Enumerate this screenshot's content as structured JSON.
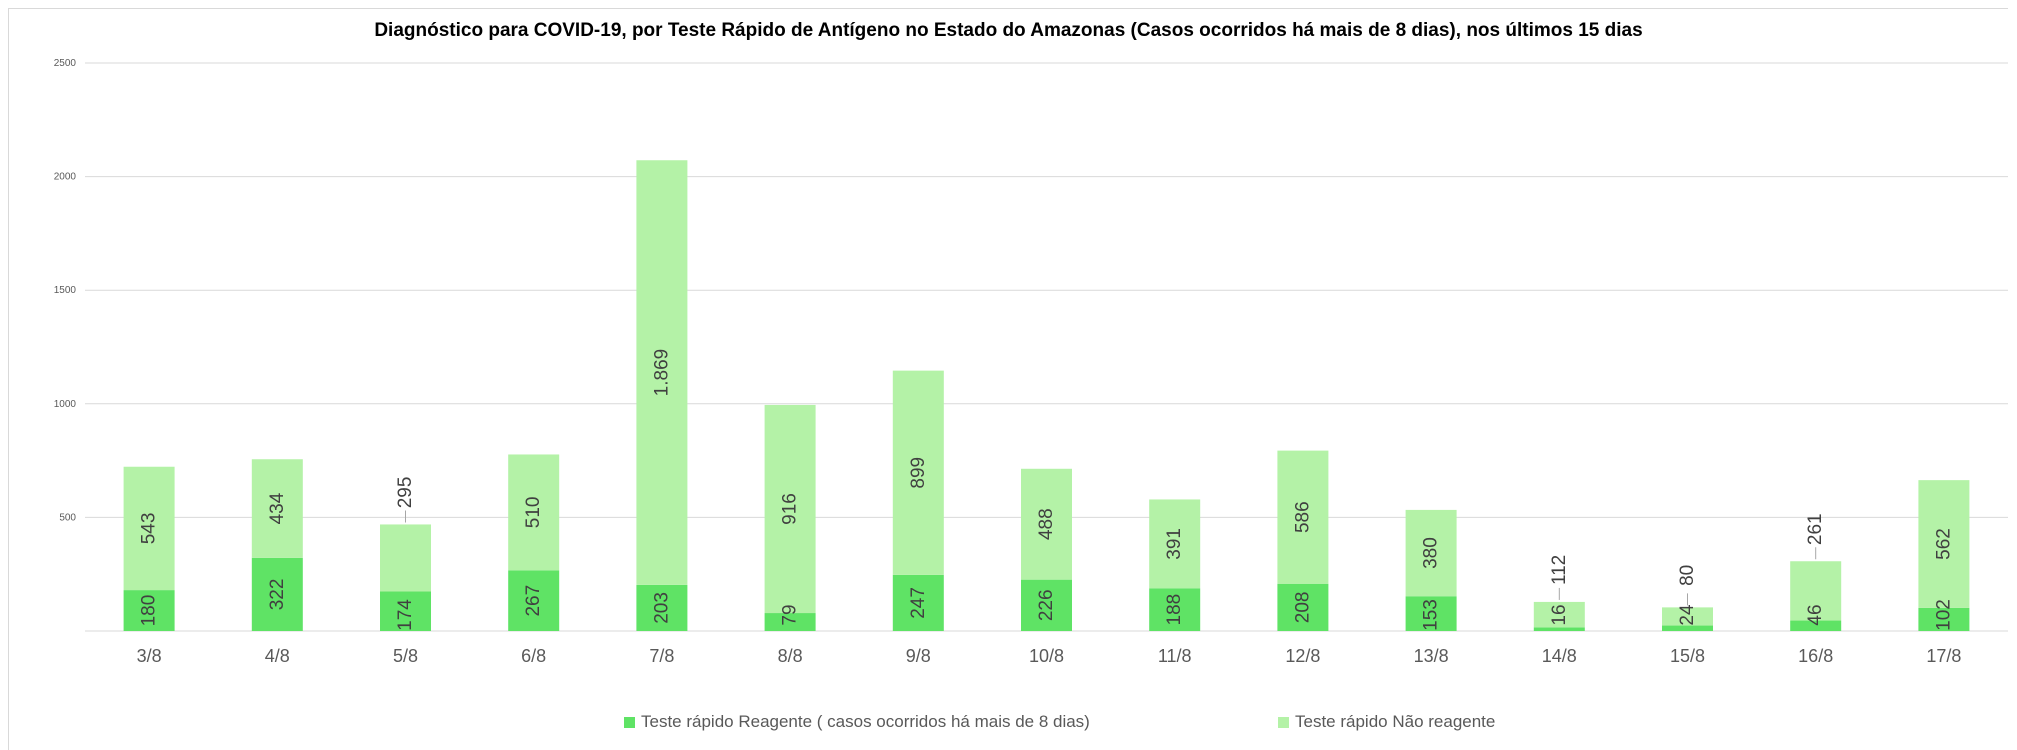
{
  "chart_data": {
    "type": "bar",
    "stacked": true,
    "title": "Diagnóstico para COVID-19, por  Teste Rápido de Antígeno no Estado do Amazonas (Casos ocorridos há mais de 8 dias), nos últimos 15 dias",
    "categories": [
      "3/8",
      "4/8",
      "5/8",
      "6/8",
      "7/8",
      "8/8",
      "9/8",
      "10/8",
      "11/8",
      "12/8",
      "13/8",
      "14/8",
      "15/8",
      "16/8",
      "17/8"
    ],
    "series": [
      {
        "name": "Teste rápido Reagente ( casos ocorridos há mais de 8 dias)",
        "color": "#5fe365",
        "values": [
          180,
          322,
          174,
          267,
          203,
          79,
          247,
          226,
          188,
          208,
          153,
          16,
          24,
          46,
          102
        ],
        "labels": [
          "180",
          "322",
          "174",
          "267",
          "203",
          "79",
          "247",
          "226",
          "188",
          "208",
          "153",
          "16",
          "24",
          "46",
          "102"
        ]
      },
      {
        "name": "Teste rápido Não reagente",
        "color": "#b4f2a7",
        "values": [
          543,
          434,
          295,
          510,
          1869,
          916,
          899,
          488,
          391,
          586,
          380,
          112,
          80,
          261,
          562
        ],
        "labels": [
          "543",
          "434",
          "295",
          "510",
          "1.869",
          "916",
          "899",
          "488",
          "391",
          "586",
          "380",
          "112",
          "80",
          "261",
          "562"
        ]
      }
    ],
    "ylim": [
      0,
      2500
    ],
    "yticks": [
      "2500",
      "2000",
      "1500",
      "1000",
      "500"
    ],
    "ytick_values": [
      2500,
      2000,
      1500,
      1000,
      500
    ],
    "grid": true,
    "legend_position": "bottom",
    "xlabel": "",
    "ylabel": ""
  }
}
